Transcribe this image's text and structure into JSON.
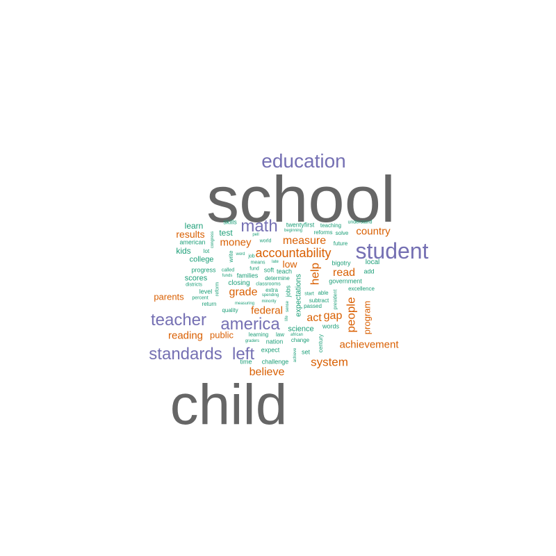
{
  "palette": {
    "gray": "#666666",
    "purple": "#7570b3",
    "orange": "#d95f02",
    "teal": "#1b9e77"
  },
  "words": [
    {
      "text": "school",
      "tier": "gray"
    },
    {
      "text": "child",
      "tier": "gray"
    },
    {
      "text": "education",
      "tier": "purple"
    },
    {
      "text": "student",
      "tier": "purple"
    },
    {
      "text": "math",
      "tier": "purple"
    },
    {
      "text": "teacher",
      "tier": "purple"
    },
    {
      "text": "america",
      "tier": "purple"
    },
    {
      "text": "standards",
      "tier": "purple"
    },
    {
      "text": "left",
      "tier": "purple"
    },
    {
      "text": "accountability",
      "tier": "orange"
    },
    {
      "text": "measure",
      "tier": "orange"
    },
    {
      "text": "country",
      "tier": "orange"
    },
    {
      "text": "results",
      "tier": "orange"
    },
    {
      "text": "money",
      "tier": "orange"
    },
    {
      "text": "grade",
      "tier": "orange"
    },
    {
      "text": "help",
      "tier": "orange"
    },
    {
      "text": "read",
      "tier": "orange"
    },
    {
      "text": "people",
      "tier": "orange"
    },
    {
      "text": "program",
      "tier": "orange"
    },
    {
      "text": "gap",
      "tier": "orange"
    },
    {
      "text": "act",
      "tier": "orange"
    },
    {
      "text": "federal",
      "tier": "orange"
    },
    {
      "text": "parents",
      "tier": "orange"
    },
    {
      "text": "reading",
      "tier": "orange"
    },
    {
      "text": "public",
      "tier": "orange"
    },
    {
      "text": "achievement",
      "tier": "orange"
    },
    {
      "text": "system",
      "tier": "orange"
    },
    {
      "text": "believe",
      "tier": "orange"
    },
    {
      "text": "low",
      "tier": "orange"
    },
    {
      "text": "test",
      "tier": "teal"
    },
    {
      "text": "learn",
      "tier": "teal"
    },
    {
      "text": "skills",
      "tier": "teal"
    },
    {
      "text": "twentyfirst",
      "tier": "teal"
    },
    {
      "text": "teaching",
      "tier": "teal"
    },
    {
      "text": "understand",
      "tier": "teal"
    },
    {
      "text": "beginning",
      "tier": "teal"
    },
    {
      "text": "reforms",
      "tier": "teal"
    },
    {
      "text": "solve",
      "tier": "teal"
    },
    {
      "text": "future",
      "tier": "teal"
    },
    {
      "text": "american",
      "tier": "teal"
    },
    {
      "text": "congress",
      "tier": "teal"
    },
    {
      "text": "pell",
      "tier": "teal"
    },
    {
      "text": "world",
      "tier": "teal"
    },
    {
      "text": "kids",
      "tier": "teal"
    },
    {
      "text": "lot",
      "tier": "teal"
    },
    {
      "text": "write",
      "tier": "teal"
    },
    {
      "text": "word",
      "tier": "teal"
    },
    {
      "text": "job",
      "tier": "teal"
    },
    {
      "text": "means",
      "tier": "teal"
    },
    {
      "text": "late",
      "tier": "teal"
    },
    {
      "text": "bigotry",
      "tier": "teal"
    },
    {
      "text": "local",
      "tier": "teal"
    },
    {
      "text": "college",
      "tier": "teal"
    },
    {
      "text": "progress",
      "tier": "teal"
    },
    {
      "text": "called",
      "tier": "teal"
    },
    {
      "text": "fund",
      "tier": "teal"
    },
    {
      "text": "soft",
      "tier": "teal"
    },
    {
      "text": "teach",
      "tier": "teal"
    },
    {
      "text": "add",
      "tier": "teal"
    },
    {
      "text": "scores",
      "tier": "teal"
    },
    {
      "text": "funds",
      "tier": "teal"
    },
    {
      "text": "families",
      "tier": "teal"
    },
    {
      "text": "determine",
      "tier": "teal"
    },
    {
      "text": "government",
      "tier": "teal"
    },
    {
      "text": "districts",
      "tier": "teal"
    },
    {
      "text": "reform",
      "tier": "teal"
    },
    {
      "text": "closing",
      "tier": "teal"
    },
    {
      "text": "classrooms",
      "tier": "teal"
    },
    {
      "text": "jobs",
      "tier": "teal"
    },
    {
      "text": "expectations",
      "tier": "teal"
    },
    {
      "text": "excellence",
      "tier": "teal"
    },
    {
      "text": "level",
      "tier": "teal"
    },
    {
      "text": "extra",
      "tier": "teal"
    },
    {
      "text": "start",
      "tier": "teal"
    },
    {
      "text": "able",
      "tier": "teal"
    },
    {
      "text": "percent",
      "tier": "teal"
    },
    {
      "text": "spending",
      "tier": "teal"
    },
    {
      "text": "subtract",
      "tier": "teal"
    },
    {
      "text": "president",
      "tier": "teal"
    },
    {
      "text": "return",
      "tier": "teal"
    },
    {
      "text": "measuring",
      "tier": "teal"
    },
    {
      "text": "minority",
      "tier": "teal"
    },
    {
      "text": "sense",
      "tier": "teal"
    },
    {
      "text": "passed",
      "tier": "teal"
    },
    {
      "text": "quality",
      "tier": "teal"
    },
    {
      "text": "life",
      "tier": "teal"
    },
    {
      "text": "science",
      "tier": "teal"
    },
    {
      "text": "words",
      "tier": "teal"
    },
    {
      "text": "learning",
      "tier": "teal"
    },
    {
      "text": "law",
      "tier": "teal"
    },
    {
      "text": "african",
      "tier": "teal"
    },
    {
      "text": "century",
      "tier": "teal"
    },
    {
      "text": "graders",
      "tier": "teal"
    },
    {
      "text": "nation",
      "tier": "teal"
    },
    {
      "text": "change",
      "tier": "teal"
    },
    {
      "text": "expect",
      "tier": "teal"
    },
    {
      "text": "set",
      "tier": "teal"
    },
    {
      "text": "achieve",
      "tier": "teal"
    },
    {
      "text": "time",
      "tier": "teal"
    },
    {
      "text": "challenge",
      "tier": "teal"
    }
  ]
}
